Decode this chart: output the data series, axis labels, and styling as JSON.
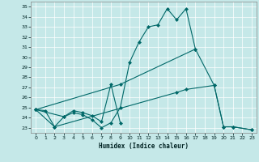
{
  "xlabel": "Humidex (Indice chaleur)",
  "bg_color": "#c5e8e8",
  "line_color": "#006868",
  "xlim": [
    -0.5,
    23.5
  ],
  "ylim": [
    22.5,
    35.5
  ],
  "yticks": [
    23,
    24,
    25,
    26,
    27,
    28,
    29,
    30,
    31,
    32,
    33,
    34,
    35
  ],
  "xticks": [
    0,
    1,
    2,
    3,
    4,
    5,
    6,
    7,
    8,
    9,
    10,
    11,
    12,
    13,
    14,
    15,
    16,
    17,
    18,
    19,
    20,
    21,
    22,
    23
  ],
  "lines": [
    {
      "x": [
        0,
        1,
        2,
        3,
        4,
        5,
        6,
        7,
        8,
        9,
        10,
        11,
        12,
        13,
        14,
        15,
        16,
        17
      ],
      "y": [
        24.8,
        24.7,
        23.1,
        24.1,
        24.5,
        24.3,
        23.8,
        23.0,
        23.5,
        25.0,
        29.5,
        31.5,
        33.0,
        33.2,
        34.8,
        33.7,
        34.8,
        30.8
      ]
    },
    {
      "x": [
        0,
        9,
        17,
        19,
        20,
        21,
        23
      ],
      "y": [
        24.8,
        27.3,
        30.8,
        27.2,
        23.1,
        23.1,
        22.8
      ]
    },
    {
      "x": [
        0,
        2,
        15,
        16,
        19,
        20,
        21,
        23
      ],
      "y": [
        24.8,
        23.1,
        26.5,
        26.8,
        27.2,
        23.1,
        23.1,
        22.8
      ]
    },
    {
      "x": [
        0,
        3,
        4,
        5,
        6,
        7,
        8,
        9
      ],
      "y": [
        24.8,
        24.1,
        24.7,
        24.5,
        24.2,
        23.6,
        27.3,
        23.5
      ]
    }
  ]
}
